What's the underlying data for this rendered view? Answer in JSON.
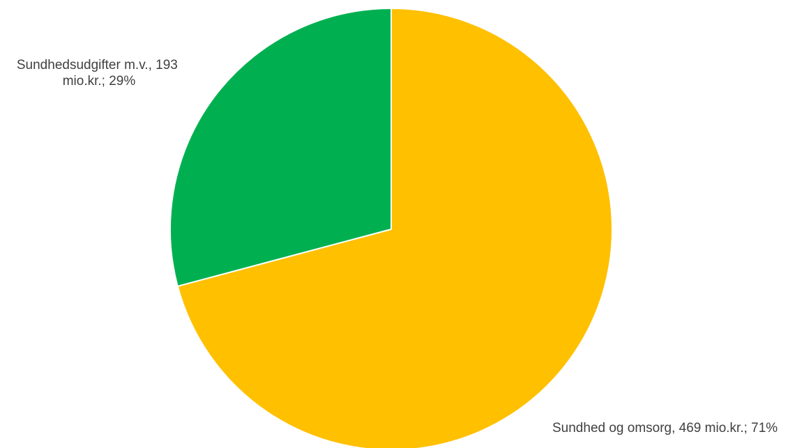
{
  "chart_data": {
    "type": "pie",
    "title": "",
    "slices": [
      {
        "label_lines": [
          "Sundhed og omsorg, 469 mio.kr.; 71%"
        ],
        "category": "Sundhed og omsorg",
        "value": 469,
        "percent": 71,
        "color": "#FFC000"
      },
      {
        "label_lines": [
          "Sundhedsudgifter m.v., 193",
          "mio.kr.; 29%"
        ],
        "category": "Sundhedsudgifter m.v.",
        "value": 193,
        "percent": 29,
        "color": "#00B050"
      }
    ],
    "legend": "none",
    "slice_border_color": "#FFFFFF"
  }
}
